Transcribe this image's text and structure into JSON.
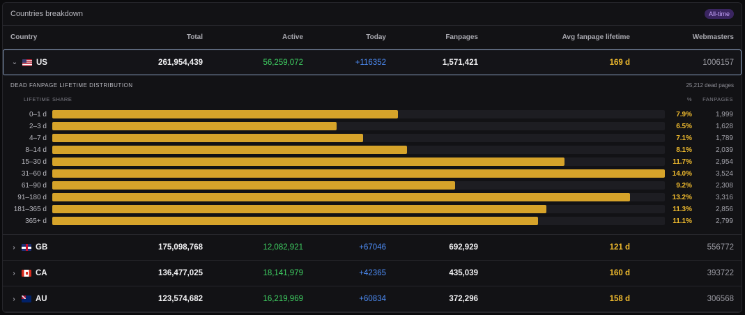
{
  "panel": {
    "title": "Countries breakdown",
    "badge": "All-time"
  },
  "columns": {
    "country": "Country",
    "total": "Total",
    "active": "Active",
    "today": "Today",
    "fanpages": "Fanpages",
    "avg_lifetime": "Avg fanpage lifetime",
    "webmasters": "Webmasters"
  },
  "rows": [
    {
      "country": "US",
      "flag": "us-flag-icon",
      "expanded": true,
      "total": "261,954,439",
      "active": "56,259,072",
      "today": "+116352",
      "fanpages": "1,571,421",
      "avg_lifetime": "169 d",
      "webmasters": "1006157"
    },
    {
      "country": "GB",
      "flag": "gb-flag-icon",
      "expanded": false,
      "total": "175,098,768",
      "active": "12,082,921",
      "today": "+67046",
      "fanpages": "692,929",
      "avg_lifetime": "121 d",
      "webmasters": "556772"
    },
    {
      "country": "CA",
      "flag": "ca-flag-icon",
      "expanded": false,
      "total": "136,477,025",
      "active": "18,141,979",
      "today": "+42365",
      "fanpages": "435,039",
      "avg_lifetime": "160 d",
      "webmasters": "393722"
    },
    {
      "country": "AU",
      "flag": "au-flag-icon",
      "expanded": false,
      "total": "123,574,682",
      "active": "16,219,969",
      "today": "+60834",
      "fanpages": "372,296",
      "avg_lifetime": "158 d",
      "webmasters": "306568"
    }
  ],
  "distribution": {
    "title": "DEAD FANPAGE LIFETIME DISTRIBUTION",
    "dead_pages": "25,212 dead pages",
    "col_lifetime": "LIFETIME",
    "col_share": "SHARE",
    "col_pct": "%",
    "col_fanpages": "FANPAGES",
    "bar_color": "#d6a32a",
    "buckets": [
      {
        "label": "0–1 d",
        "share": 0.564,
        "pct": "7.9%",
        "count": "1,999"
      },
      {
        "label": "2–3 d",
        "share": 0.464,
        "pct": "6.5%",
        "count": "1,628"
      },
      {
        "label": "4–7 d",
        "share": 0.507,
        "pct": "7.1%",
        "count": "1,789"
      },
      {
        "label": "8–14 d",
        "share": 0.579,
        "pct": "8.1%",
        "count": "2,039"
      },
      {
        "label": "15–30 d",
        "share": 0.836,
        "pct": "11.7%",
        "count": "2,954"
      },
      {
        "label": "31–60 d",
        "share": 1.0,
        "pct": "14.0%",
        "count": "3,524"
      },
      {
        "label": "61–90 d",
        "share": 0.657,
        "pct": "9.2%",
        "count": "2,308"
      },
      {
        "label": "91–180 d",
        "share": 0.943,
        "pct": "13.2%",
        "count": "3,316"
      },
      {
        "label": "181–365 d",
        "share": 0.807,
        "pct": "11.3%",
        "count": "2,856"
      },
      {
        "label": "365+ d",
        "share": 0.793,
        "pct": "11.1%",
        "count": "2,799"
      }
    ]
  }
}
